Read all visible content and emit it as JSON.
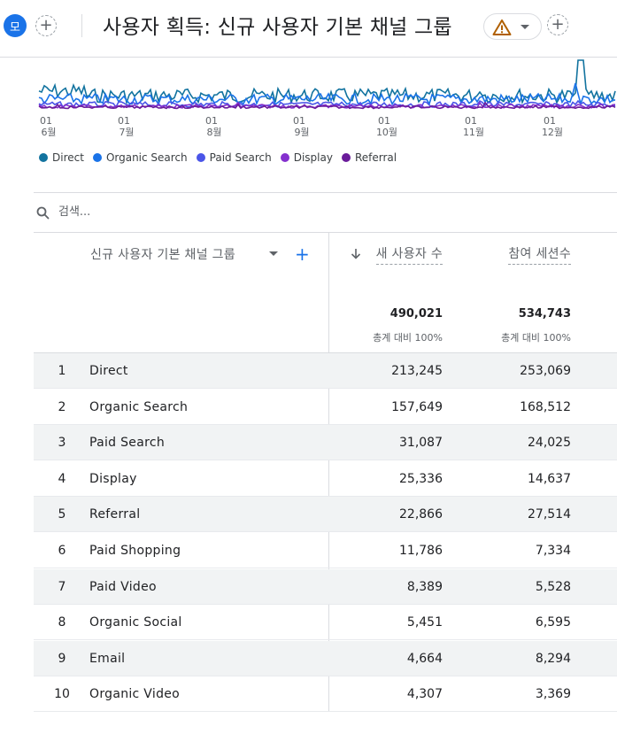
{
  "header": {
    "avatar_initial": "모",
    "title": "사용자 획득: 신규 사용자 기본 채널 그룹",
    "add_symbol": "+"
  },
  "chart_data": {
    "type": "line",
    "x_ticks": [
      {
        "day": "01",
        "month": "6월"
      },
      {
        "day": "01",
        "month": "7월"
      },
      {
        "day": "01",
        "month": "8월"
      },
      {
        "day": "01",
        "month": "9월"
      },
      {
        "day": "01",
        "month": "10월"
      },
      {
        "day": "01",
        "month": "11월"
      },
      {
        "day": "01",
        "month": "12월"
      }
    ],
    "series": [
      {
        "name": "Direct",
        "color": "#12739f"
      },
      {
        "name": "Organic Search",
        "color": "#1a73e8"
      },
      {
        "name": "Paid Search",
        "color": "#4a55e8"
      },
      {
        "name": "Display",
        "color": "#8430ce"
      },
      {
        "name": "Referral",
        "color": "#6a1b9a"
      }
    ],
    "grid": false,
    "legend_position": "bottom-left"
  },
  "search": {
    "placeholder": "검색..."
  },
  "table": {
    "dimension_header": "신규 사용자 기본 채널 그룹",
    "add_symbol": "+",
    "metrics": [
      {
        "header": "새 사용자 수",
        "total": "490,021",
        "total_pct": "총계 대비 100%",
        "sorted": true
      },
      {
        "header": "참여 세션수",
        "total": "534,743",
        "total_pct": "총계 대비 100%",
        "sorted": false
      }
    ],
    "rows": [
      {
        "rank": "1",
        "channel": "Direct",
        "new_users": "213,245",
        "engaged_sessions": "253,069"
      },
      {
        "rank": "2",
        "channel": "Organic Search",
        "new_users": "157,649",
        "engaged_sessions": "168,512"
      },
      {
        "rank": "3",
        "channel": "Paid Search",
        "new_users": "31,087",
        "engaged_sessions": "24,025"
      },
      {
        "rank": "4",
        "channel": "Display",
        "new_users": "25,336",
        "engaged_sessions": "14,637"
      },
      {
        "rank": "5",
        "channel": "Referral",
        "new_users": "22,866",
        "engaged_sessions": "27,514"
      },
      {
        "rank": "6",
        "channel": "Paid Shopping",
        "new_users": "11,786",
        "engaged_sessions": "7,334"
      },
      {
        "rank": "7",
        "channel": "Paid Video",
        "new_users": "8,389",
        "engaged_sessions": "5,528"
      },
      {
        "rank": "8",
        "channel": "Organic Social",
        "new_users": "5,451",
        "engaged_sessions": "6,595"
      },
      {
        "rank": "9",
        "channel": "Email",
        "new_users": "4,664",
        "engaged_sessions": "8,294"
      },
      {
        "rank": "10",
        "channel": "Organic Video",
        "new_users": "4,307",
        "engaged_sessions": "3,369"
      }
    ]
  }
}
